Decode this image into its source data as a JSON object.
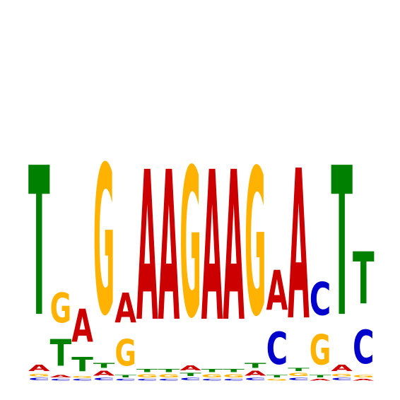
{
  "logo": {
    "alphabet": [
      "A",
      "C",
      "G",
      "T"
    ],
    "colors": {
      "A": "#cc0000",
      "C": "#0000cc",
      "G": "#ffb300",
      "T": "#008000"
    },
    "max_bits": 2.0,
    "positions": [
      {
        "A": 0.08,
        "C": 0.03,
        "G": 0.03,
        "T": 1.86
      },
      {
        "A": 0.03,
        "C": 0.02,
        "G": 0.37,
        "T": 0.33
      },
      {
        "A": 0.41,
        "C": 0.02,
        "G": 0.02,
        "T": 0.18
      },
      {
        "A": 0.06,
        "C": 0.03,
        "G": 1.86,
        "T": 0.06
      },
      {
        "A": 0.37,
        "C": 0.02,
        "G": 0.33,
        "T": 0.03
      },
      {
        "A": 1.87,
        "C": 0.02,
        "G": 0.04,
        "T": 0.04
      },
      {
        "A": 1.87,
        "C": 0.02,
        "G": 0.04,
        "T": 0.04
      },
      {
        "A": 0.06,
        "C": 0.03,
        "G": 1.86,
        "T": 0.04
      },
      {
        "A": 1.87,
        "C": 0.02,
        "G": 0.04,
        "T": 0.04
      },
      {
        "A": 1.87,
        "C": 0.02,
        "G": 0.04,
        "T": 0.04
      },
      {
        "A": 0.06,
        "C": 0.03,
        "G": 1.83,
        "T": 0.06
      },
      {
        "A": 0.5,
        "C": 0.4,
        "G": 0.02,
        "T": 0.03
      },
      {
        "A": 1.87,
        "C": 0.03,
        "G": 0.04,
        "T": 0.04
      },
      {
        "A": 0.02,
        "C": 0.41,
        "G": 0.38,
        "T": 0.03
      },
      {
        "A": 0.08,
        "C": 0.03,
        "G": 0.03,
        "T": 1.86
      },
      {
        "A": 0.02,
        "C": 0.42,
        "G": 0.03,
        "T": 0.65
      }
    ]
  }
}
